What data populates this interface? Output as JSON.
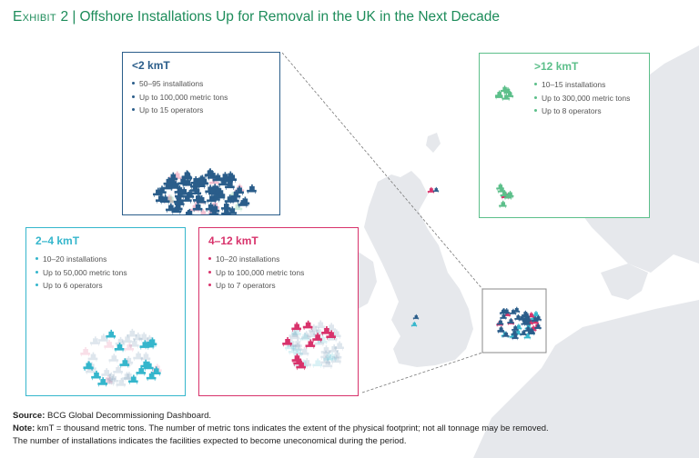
{
  "header": {
    "exhibit": "Exhibit 2",
    "separator": "|",
    "title": "Offshore Installations Up for Removal in the UK in the Next Decade"
  },
  "panels": [
    {
      "id": "lt2",
      "heading": "<2 kmT",
      "color": "#2a5d8a",
      "stats": [
        "50–95 installations",
        "Up to 100,000 metric tons",
        "Up to 15 operators"
      ]
    },
    {
      "id": "gt12",
      "heading": ">12 kmT",
      "color": "#5cbf8a",
      "stats": [
        "10–15 installations",
        "Up to 300,000 metric tons",
        "Up to 8 operators"
      ]
    },
    {
      "id": "2to4",
      "heading": "2–4 kmT",
      "color": "#35b6cc",
      "stats": [
        "10–20 installations",
        "Up to 50,000 metric tons",
        "Up to 6 operators"
      ]
    },
    {
      "id": "4to12",
      "heading": "4–12 kmT",
      "color": "#d8326b",
      "stats": [
        "10–20 installations",
        "Up to 100,000 metric tons",
        "Up to 7 operators"
      ]
    }
  ],
  "colors": {
    "land": "#e6e8ec",
    "title": "#1d8c5a",
    "connector": "#777777",
    "focus_box": "#888888"
  },
  "footer": {
    "source_label": "Source:",
    "source_text": "BCG Global Decommissioning Dashboard.",
    "note_label": "Note:",
    "note_line1": "kmT = thousand metric tons. The number of metric tons indicates the extent of the physical footprint; not all tonnage may be removed.",
    "note_line2": "The number of installations indicates the facilities expected to become uneconomical during the period."
  }
}
